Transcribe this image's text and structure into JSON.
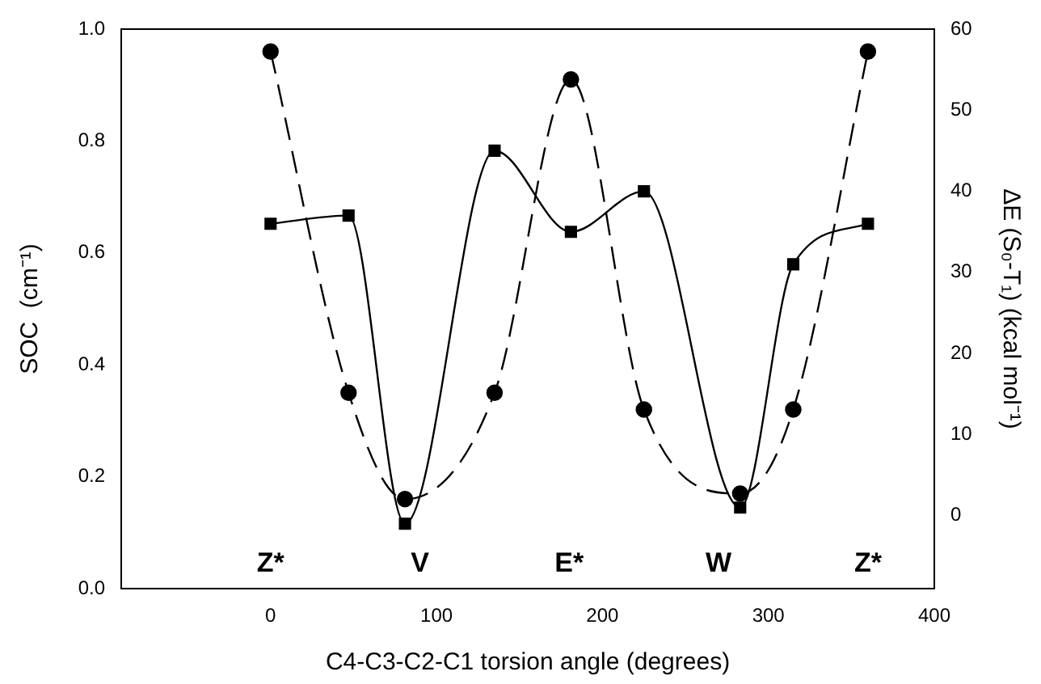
{
  "chart_data": {
    "type": "line",
    "xlabel": "C4-C3-C2-C1 torsion angle (degrees)",
    "ylabel": "SOC  (cm⁻¹)",
    "y2label": "ΔE (S₀-T₁) (kcal mol⁻¹)",
    "series": [
      {
        "color": "#000000",
        "marker": "circle",
        "line_style": "dashed",
        "x": [
          0,
          47,
          81,
          135,
          181,
          225,
          283,
          315,
          360
        ],
        "values": [
          0.96,
          0.35,
          0.16,
          0.35,
          0.91,
          0.32,
          0.17,
          0.32,
          0.96
        ]
      },
      {
        "color": "#000000",
        "marker": "square",
        "line_style": "solid",
        "axis": "y2",
        "x": [
          0,
          47,
          81,
          135,
          181,
          225,
          283,
          315,
          360
        ],
        "values": [
          36,
          37,
          -1,
          45,
          35,
          40,
          1,
          31,
          36
        ]
      }
    ],
    "xlim": [
      -90,
      400
    ],
    "xticks": [
      0,
      100,
      200,
      300,
      400
    ],
    "ylim": [
      0,
      1
    ],
    "yticks": [
      {
        "value": 0,
        "label": "0.0"
      },
      {
        "value": 0.2,
        "label": "0.2"
      },
      {
        "value": 0.4,
        "label": "0.4"
      },
      {
        "value": 0.6,
        "label": "0.6"
      },
      {
        "value": 0.8,
        "label": "0.8"
      },
      {
        "value": 1,
        "label": "1.0"
      }
    ],
    "y2lim": [
      -9,
      60
    ],
    "y2ticks": [
      0,
      10,
      20,
      30,
      40,
      50,
      60
    ],
    "grid": false,
    "legend": false,
    "annotations": [
      "Z*",
      "V",
      "E*",
      "W",
      "Z*"
    ]
  }
}
